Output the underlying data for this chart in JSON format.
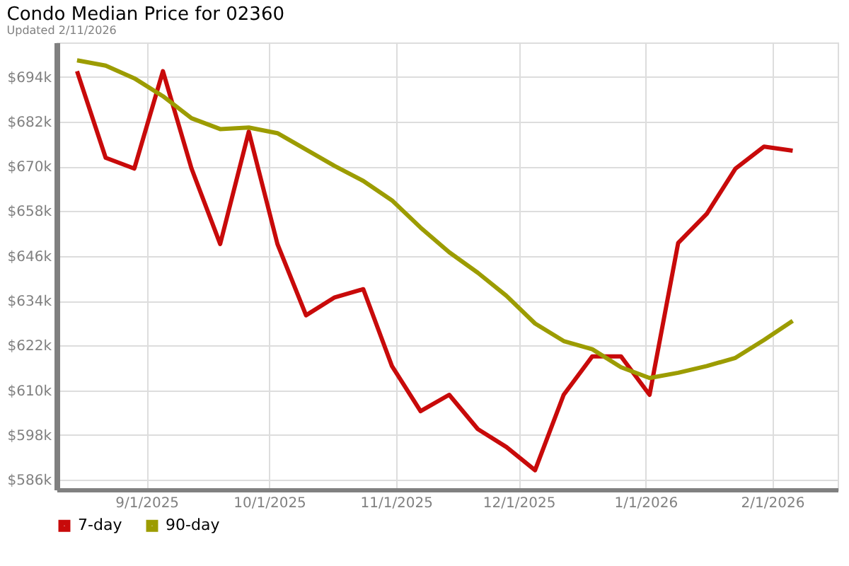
{
  "chart_data": {
    "type": "line",
    "title": "Condo Median Price for 02360",
    "subtitle": "Updated 2/11/2026",
    "x": [
      "2025-08-15",
      "2025-08-22",
      "2025-08-29",
      "2025-09-05",
      "2025-09-12",
      "2025-09-19",
      "2025-09-26",
      "2025-10-03",
      "2025-10-10",
      "2025-10-17",
      "2025-10-24",
      "2025-10-31",
      "2025-11-07",
      "2025-11-14",
      "2025-11-21",
      "2025-11-28",
      "2025-12-05",
      "2025-12-12",
      "2025-12-19",
      "2025-12-26",
      "2026-01-02",
      "2026-01-09",
      "2026-01-16",
      "2026-01-23",
      "2026-01-30",
      "2026-02-06"
    ],
    "series": [
      {
        "name": "7-day",
        "color": "#c80a0a",
        "values": [
          695.5,
          672.3,
          669.4,
          695.5,
          669.4,
          649.2,
          679.3,
          649.2,
          630.1,
          634.9,
          637.1,
          616.5,
          604.4,
          608.8,
          599.6,
          594.8,
          588.6,
          608.8,
          619.1,
          619.1,
          608.8,
          649.5,
          657.3,
          669.4,
          675.3,
          674.2
        ]
      },
      {
        "name": "90-day",
        "color": "#9c9c00",
        "values": [
          698.4,
          697.0,
          693.6,
          688.8,
          682.9,
          680.0,
          680.4,
          678.9,
          674.5,
          670.1,
          666.1,
          660.9,
          653.6,
          647.0,
          641.5,
          635.3,
          627.9,
          623.2,
          621.0,
          616.2,
          613.3,
          614.7,
          616.5,
          618.7,
          623.5,
          628.6
        ]
      }
    ],
    "xlim": [
      "2025-08-10",
      "2026-02-17"
    ],
    "xticks": [
      {
        "value": "2025-09-01",
        "label": "9/1/2025"
      },
      {
        "value": "2025-10-01",
        "label": "10/1/2025"
      },
      {
        "value": "2025-11-01",
        "label": "11/1/2025"
      },
      {
        "value": "2025-12-01",
        "label": "12/1/2025"
      },
      {
        "value": "2026-01-01",
        "label": "1/1/2026"
      },
      {
        "value": "2026-02-01",
        "label": "2/1/2026"
      }
    ],
    "ylim": [
      583.4,
      703.2
    ],
    "yticks": [
      {
        "value": 586,
        "label": "$586k"
      },
      {
        "value": 598,
        "label": "$598k"
      },
      {
        "value": 610,
        "label": "$610k"
      },
      {
        "value": 622,
        "label": "$622k"
      },
      {
        "value": 634,
        "label": "$634k"
      },
      {
        "value": 646,
        "label": "$646k"
      },
      {
        "value": 658,
        "label": "$658k"
      },
      {
        "value": 670,
        "label": "$670k"
      },
      {
        "value": 682,
        "label": "$682k"
      },
      {
        "value": 694,
        "label": "$694k"
      }
    ],
    "grid": true,
    "legend": "bottom left",
    "marker": "none",
    "line_style": "solid"
  }
}
